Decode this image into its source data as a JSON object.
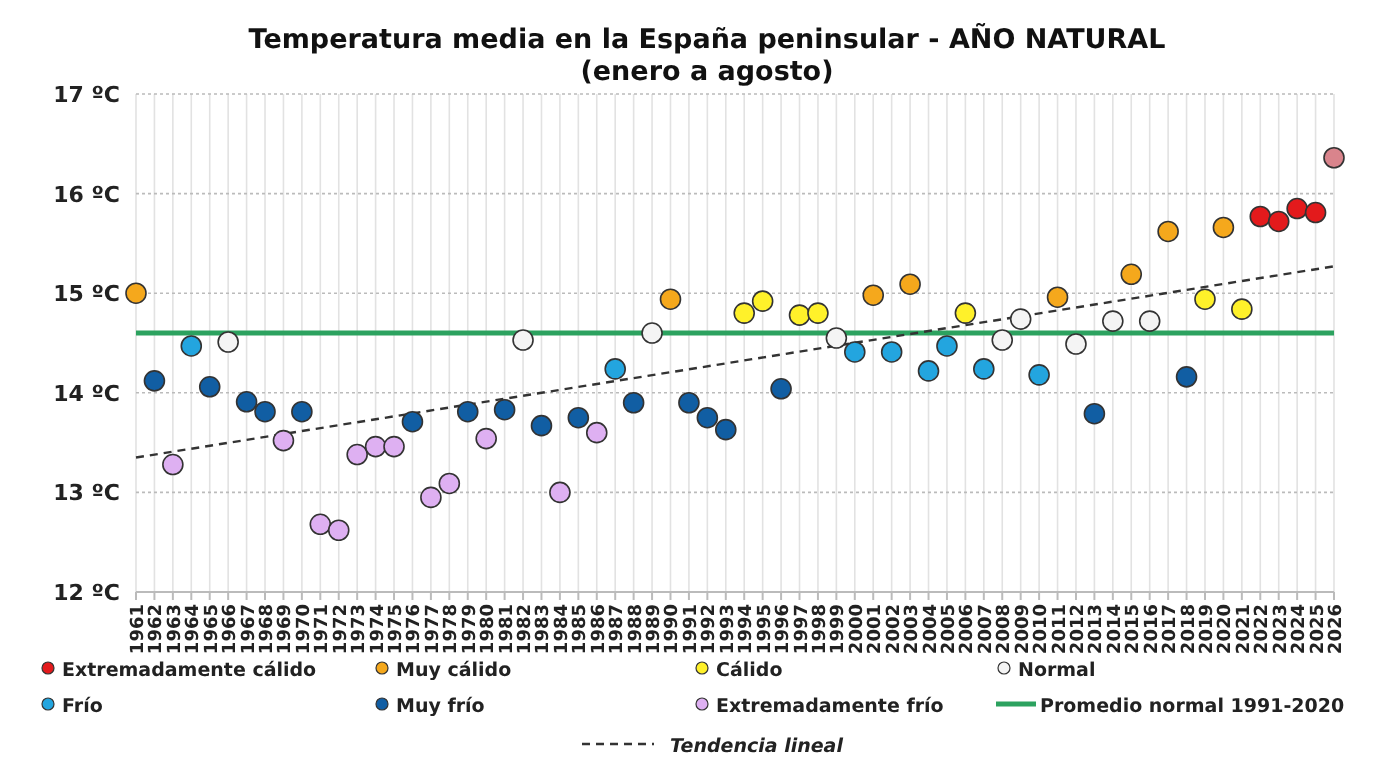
{
  "chart_data": {
    "type": "scatter",
    "title": "Temperatura media en la España peninsular - AÑO NATURAL",
    "subtitle": "(enero a agosto)",
    "xlim": [
      1961,
      2026
    ],
    "xticks": [
      1961,
      1962,
      1963,
      1964,
      1965,
      1966,
      1967,
      1968,
      1969,
      1970,
      1971,
      1972,
      1973,
      1974,
      1975,
      1976,
      1977,
      1978,
      1979,
      1980,
      1981,
      1982,
      1983,
      1984,
      1985,
      1986,
      1987,
      1988,
      1989,
      1990,
      1991,
      1992,
      1993,
      1994,
      1995,
      1996,
      1997,
      1998,
      1999,
      2000,
      2001,
      2002,
      2003,
      2004,
      2005,
      2006,
      2007,
      2008,
      2009,
      2010,
      2011,
      2012,
      2013,
      2014,
      2015,
      2016,
      2017,
      2018,
      2019,
      2020,
      2021,
      2022,
      2023,
      2024,
      2025,
      2026
    ],
    "ylim": [
      12,
      17
    ],
    "yticks": [
      {
        "value": 12,
        "label": "12 ºC"
      },
      {
        "value": 13,
        "label": "13 ºC"
      },
      {
        "value": 14,
        "label": "14 ºC"
      },
      {
        "value": 15,
        "label": "15 ºC"
      },
      {
        "value": 16,
        "label": "16 ºC"
      },
      {
        "value": 17,
        "label": "17 ºC"
      }
    ],
    "grid": true,
    "legend": "bottom",
    "marker": "circle",
    "series": [
      {
        "name": "Extremadamente cálido",
        "color": "#e31a1c",
        "x": [
          2022,
          2023,
          2024,
          2025
        ],
        "values": [
          15.77,
          15.72,
          15.85,
          15.81
        ]
      },
      {
        "name": "Muy cálido",
        "color": "#f5a81c",
        "x": [
          1961,
          1990,
          2001,
          2003,
          2011,
          2015,
          2017,
          2020
        ],
        "values": [
          15.0,
          14.94,
          14.98,
          15.09,
          14.96,
          15.19,
          15.62,
          15.66
        ]
      },
      {
        "name": "Cálido",
        "color": "#fff12a",
        "x": [
          1994,
          1995,
          1997,
          1998,
          2006,
          2019,
          2021
        ],
        "values": [
          14.8,
          14.92,
          14.78,
          14.8,
          14.8,
          14.94,
          14.84
        ]
      },
      {
        "name": "Normal",
        "color": "#f4f4f4",
        "x": [
          1966,
          1982,
          1989,
          1999,
          2008,
          2009,
          2012,
          2014,
          2016
        ],
        "values": [
          14.51,
          14.53,
          14.6,
          14.55,
          14.53,
          14.74,
          14.49,
          14.72,
          14.72
        ]
      },
      {
        "name": "Frío",
        "color": "#23a5df",
        "x": [
          1964,
          1987,
          2000,
          2002,
          2004,
          2005,
          2007,
          2010
        ],
        "values": [
          14.47,
          14.24,
          14.41,
          14.41,
          14.22,
          14.47,
          14.24,
          14.18
        ]
      },
      {
        "name": "Muy frío",
        "color": "#115ea3",
        "x": [
          1962,
          1965,
          1967,
          1968,
          1970,
          1976,
          1979,
          1981,
          1983,
          1985,
          1988,
          1991,
          1992,
          1993,
          1996,
          2013,
          2018
        ],
        "values": [
          14.12,
          14.06,
          13.91,
          13.81,
          13.81,
          13.71,
          13.81,
          13.83,
          13.67,
          13.75,
          13.9,
          13.9,
          13.75,
          13.63,
          14.04,
          13.79,
          14.16
        ]
      },
      {
        "name": "Extremadamente frío",
        "color": "#deb0f2",
        "x": [
          1963,
          1969,
          1971,
          1972,
          1973,
          1974,
          1975,
          1977,
          1978,
          1980,
          1984,
          1986
        ],
        "values": [
          13.28,
          13.52,
          12.68,
          12.62,
          13.38,
          13.46,
          13.46,
          12.95,
          13.09,
          13.54,
          13.0,
          13.6
        ]
      },
      {
        "color": "#d9848c",
        "x": [
          2026
        ],
        "values": [
          16.36
        ]
      },
      {
        "name": "Tendencia lineal",
        "type": "line",
        "line_style": "dashed",
        "marker": "none",
        "color": "#333333",
        "x": [
          1961,
          2026
        ],
        "values": [
          13.35,
          15.27
        ]
      }
    ],
    "ref_lines": [
      {
        "axis": "y",
        "value": 14.6,
        "label": "Promedio normal 1991-2020",
        "color": "#2ca25f"
      }
    ]
  }
}
